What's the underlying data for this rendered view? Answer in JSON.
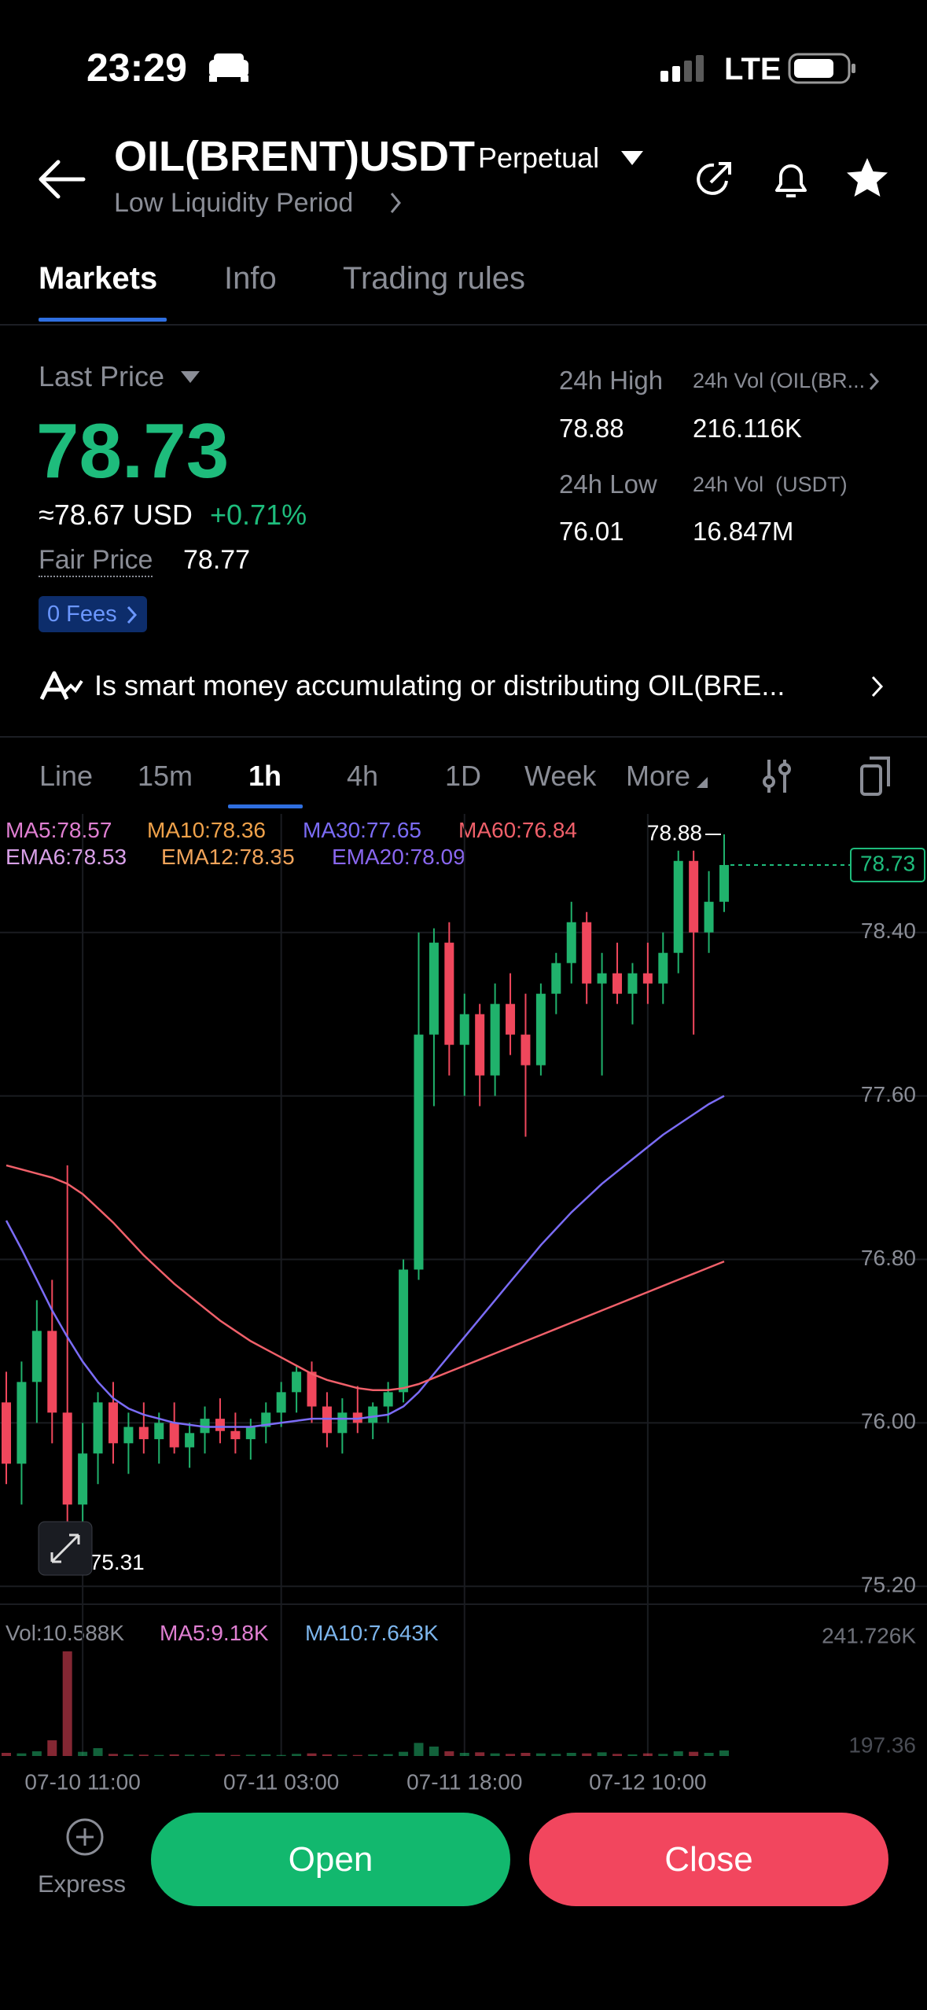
{
  "status_bar": {
    "time": "23:29",
    "network": "LTE"
  },
  "header": {
    "title": "OIL(BRENT)USDT",
    "contract_type": "Perpetual",
    "subtitle": "Low Liquidity Period"
  },
  "tabs": [
    "Markets",
    "Info",
    "Trading rules"
  ],
  "ticker": {
    "last_price_label": "Last Price",
    "last_price": "78.73",
    "usd_price": "≈78.67 USD",
    "change": "+0.71%",
    "fair_price_label": "Fair Price",
    "fair_price": "78.77",
    "fees_badge": "0 Fees",
    "stats": [
      {
        "label": "24h High",
        "value": "78.88"
      },
      {
        "label": "24h Vol (OIL(BR...",
        "value": "216.116K"
      },
      {
        "label": "24h Low",
        "value": "76.01"
      },
      {
        "label": "24h Vol  (USDT)",
        "value": "16.847M"
      }
    ]
  },
  "banner": "Is smart money accumulating or distributing OIL(BRE...",
  "intervals": [
    "Line",
    "15m",
    "1h",
    "4h",
    "1D",
    "Week",
    "More"
  ],
  "indicators": [
    "MA5:78.57",
    "MA10:78.36",
    "MA30:77.65",
    "MA60:76.84",
    "EMA6:78.53",
    "EMA12:78.35",
    "EMA20:78.09"
  ],
  "volume_indicators": [
    "Vol:10.588K",
    "MA5:9.18K",
    "MA10:7.643K"
  ],
  "chart_data": {
    "type": "candlestick",
    "categories": [
      null,
      null,
      null,
      null,
      null,
      "07-10 11:00",
      null,
      null,
      null,
      null,
      null,
      null,
      null,
      null,
      null,
      null,
      null,
      null,
      "07-11 03:00",
      null,
      null,
      null,
      null,
      null,
      null,
      null,
      null,
      null,
      null,
      null,
      "07-11 18:00",
      null,
      null,
      null,
      null,
      null,
      null,
      null,
      null,
      null,
      null,
      null,
      "07-12 10:00",
      null,
      null,
      null,
      null,
      null
    ],
    "open": [
      76.1,
      75.8,
      76.2,
      76.45,
      76.05,
      75.6,
      75.85,
      76.1,
      75.9,
      75.98,
      75.92,
      76.0,
      75.88,
      75.95,
      76.02,
      75.96,
      75.92,
      75.98,
      76.05,
      76.15,
      76.25,
      76.08,
      75.95,
      76.05,
      76.0,
      76.08,
      76.15,
      76.75,
      77.9,
      78.35,
      77.85,
      78.0,
      77.7,
      78.05,
      77.9,
      77.75,
      78.1,
      78.25,
      78.45,
      78.15,
      78.2,
      78.1,
      78.2,
      78.15,
      78.3,
      78.75,
      78.4,
      78.55
    ],
    "high": [
      76.25,
      76.3,
      76.6,
      76.7,
      77.26,
      76.0,
      76.15,
      76.2,
      76.05,
      76.1,
      76.05,
      76.1,
      76.0,
      76.08,
      76.12,
      76.05,
      76.02,
      76.1,
      76.2,
      76.28,
      76.3,
      76.15,
      76.12,
      76.18,
      76.1,
      76.2,
      76.8,
      78.4,
      78.42,
      78.45,
      78.1,
      78.05,
      78.15,
      78.2,
      78.1,
      78.15,
      78.3,
      78.55,
      78.5,
      78.3,
      78.35,
      78.25,
      78.35,
      78.4,
      78.8,
      78.8,
      78.7,
      78.88
    ],
    "low": [
      75.7,
      75.6,
      76.0,
      75.9,
      75.31,
      75.4,
      75.7,
      75.8,
      75.75,
      75.85,
      75.8,
      75.85,
      75.78,
      75.85,
      75.9,
      75.85,
      75.82,
      75.9,
      75.98,
      76.05,
      76.0,
      75.88,
      75.85,
      75.95,
      75.92,
      76.0,
      76.1,
      76.7,
      77.55,
      77.7,
      77.6,
      77.55,
      77.6,
      77.8,
      77.4,
      77.7,
      78.0,
      78.15,
      78.05,
      77.7,
      78.05,
      77.95,
      78.05,
      78.05,
      78.2,
      77.9,
      78.3,
      78.5
    ],
    "close": [
      75.8,
      76.2,
      76.45,
      76.05,
      75.6,
      75.85,
      76.1,
      75.9,
      75.98,
      75.92,
      76.0,
      75.88,
      75.95,
      76.02,
      75.96,
      75.92,
      75.98,
      76.05,
      76.15,
      76.25,
      76.08,
      75.95,
      76.05,
      76.0,
      76.08,
      76.15,
      76.75,
      77.9,
      78.35,
      77.85,
      78.0,
      77.7,
      78.05,
      77.9,
      77.75,
      78.1,
      78.25,
      78.45,
      78.15,
      78.2,
      78.1,
      78.2,
      78.15,
      78.3,
      78.75,
      78.4,
      78.55,
      78.73
    ],
    "up_color": "#20b26c",
    "down_color": "#f0475c",
    "lines": [
      {
        "color": "#7b6cf6",
        "values": [
          76.99,
          76.85,
          76.7,
          76.55,
          76.42,
          76.3,
          76.2,
          76.12,
          76.07,
          76.04,
          76.02,
          76.0,
          75.99,
          75.98,
          75.98,
          75.98,
          75.98,
          75.99,
          76.0,
          76.01,
          76.02,
          76.02,
          76.02,
          76.02,
          76.03,
          76.04,
          76.08,
          76.15,
          76.24,
          76.33,
          76.42,
          76.51,
          76.6,
          76.69,
          76.78,
          76.87,
          76.95,
          77.03,
          77.1,
          77.17,
          77.23,
          77.29,
          77.35,
          77.41,
          77.46,
          77.51,
          77.56,
          77.6
        ]
      },
      {
        "color": "#f0606a",
        "values": [
          77.26,
          77.24,
          77.22,
          77.2,
          77.17,
          77.12,
          77.05,
          76.98,
          76.9,
          76.82,
          76.75,
          76.68,
          76.62,
          76.56,
          76.5,
          76.45,
          76.4,
          76.36,
          76.32,
          76.28,
          76.24,
          76.21,
          76.19,
          76.17,
          76.16,
          76.16,
          76.17,
          76.19,
          76.22,
          76.25,
          76.28,
          76.31,
          76.34,
          76.37,
          76.4,
          76.43,
          76.46,
          76.49,
          76.52,
          76.55,
          76.58,
          76.61,
          76.64,
          76.67,
          76.7,
          76.73,
          76.76,
          76.79
        ]
      }
    ],
    "ylim": [
      75.12,
      78.98
    ],
    "yticks": [
      {
        "value": 78.4,
        "label": "78.40"
      },
      {
        "value": 77.6,
        "label": "77.60"
      },
      {
        "value": 76.8,
        "label": "76.80"
      },
      {
        "value": 76.0,
        "label": "76.00"
      },
      {
        "value": 75.2,
        "label": "75.20"
      }
    ],
    "max_label": 78.88,
    "min_label": 75.31,
    "last_price": 78.73,
    "grid": true,
    "volume": [
      6000,
      5000,
      9000,
      30000,
      200000,
      8000,
      15000,
      4000,
      3000,
      2500,
      2000,
      3000,
      2500,
      2000,
      3500,
      2000,
      2500,
      3000,
      2000,
      4000,
      5000,
      3000,
      2500,
      2000,
      3000,
      3500,
      8000,
      25000,
      18000,
      9000,
      6000,
      7000,
      5000,
      4000,
      6000,
      5000,
      4000,
      6000,
      5000,
      7000,
      4000,
      3000,
      5000,
      4000,
      9000,
      8000,
      6000,
      10588
    ],
    "vlim": [
      0,
      260000
    ],
    "vticks": [
      {
        "value": 241726,
        "label": "241.726K"
      },
      {
        "value": 197.36,
        "label": "197.36"
      }
    ]
  },
  "buttons": {
    "express": "Express",
    "open": "Open",
    "close": "Close"
  }
}
